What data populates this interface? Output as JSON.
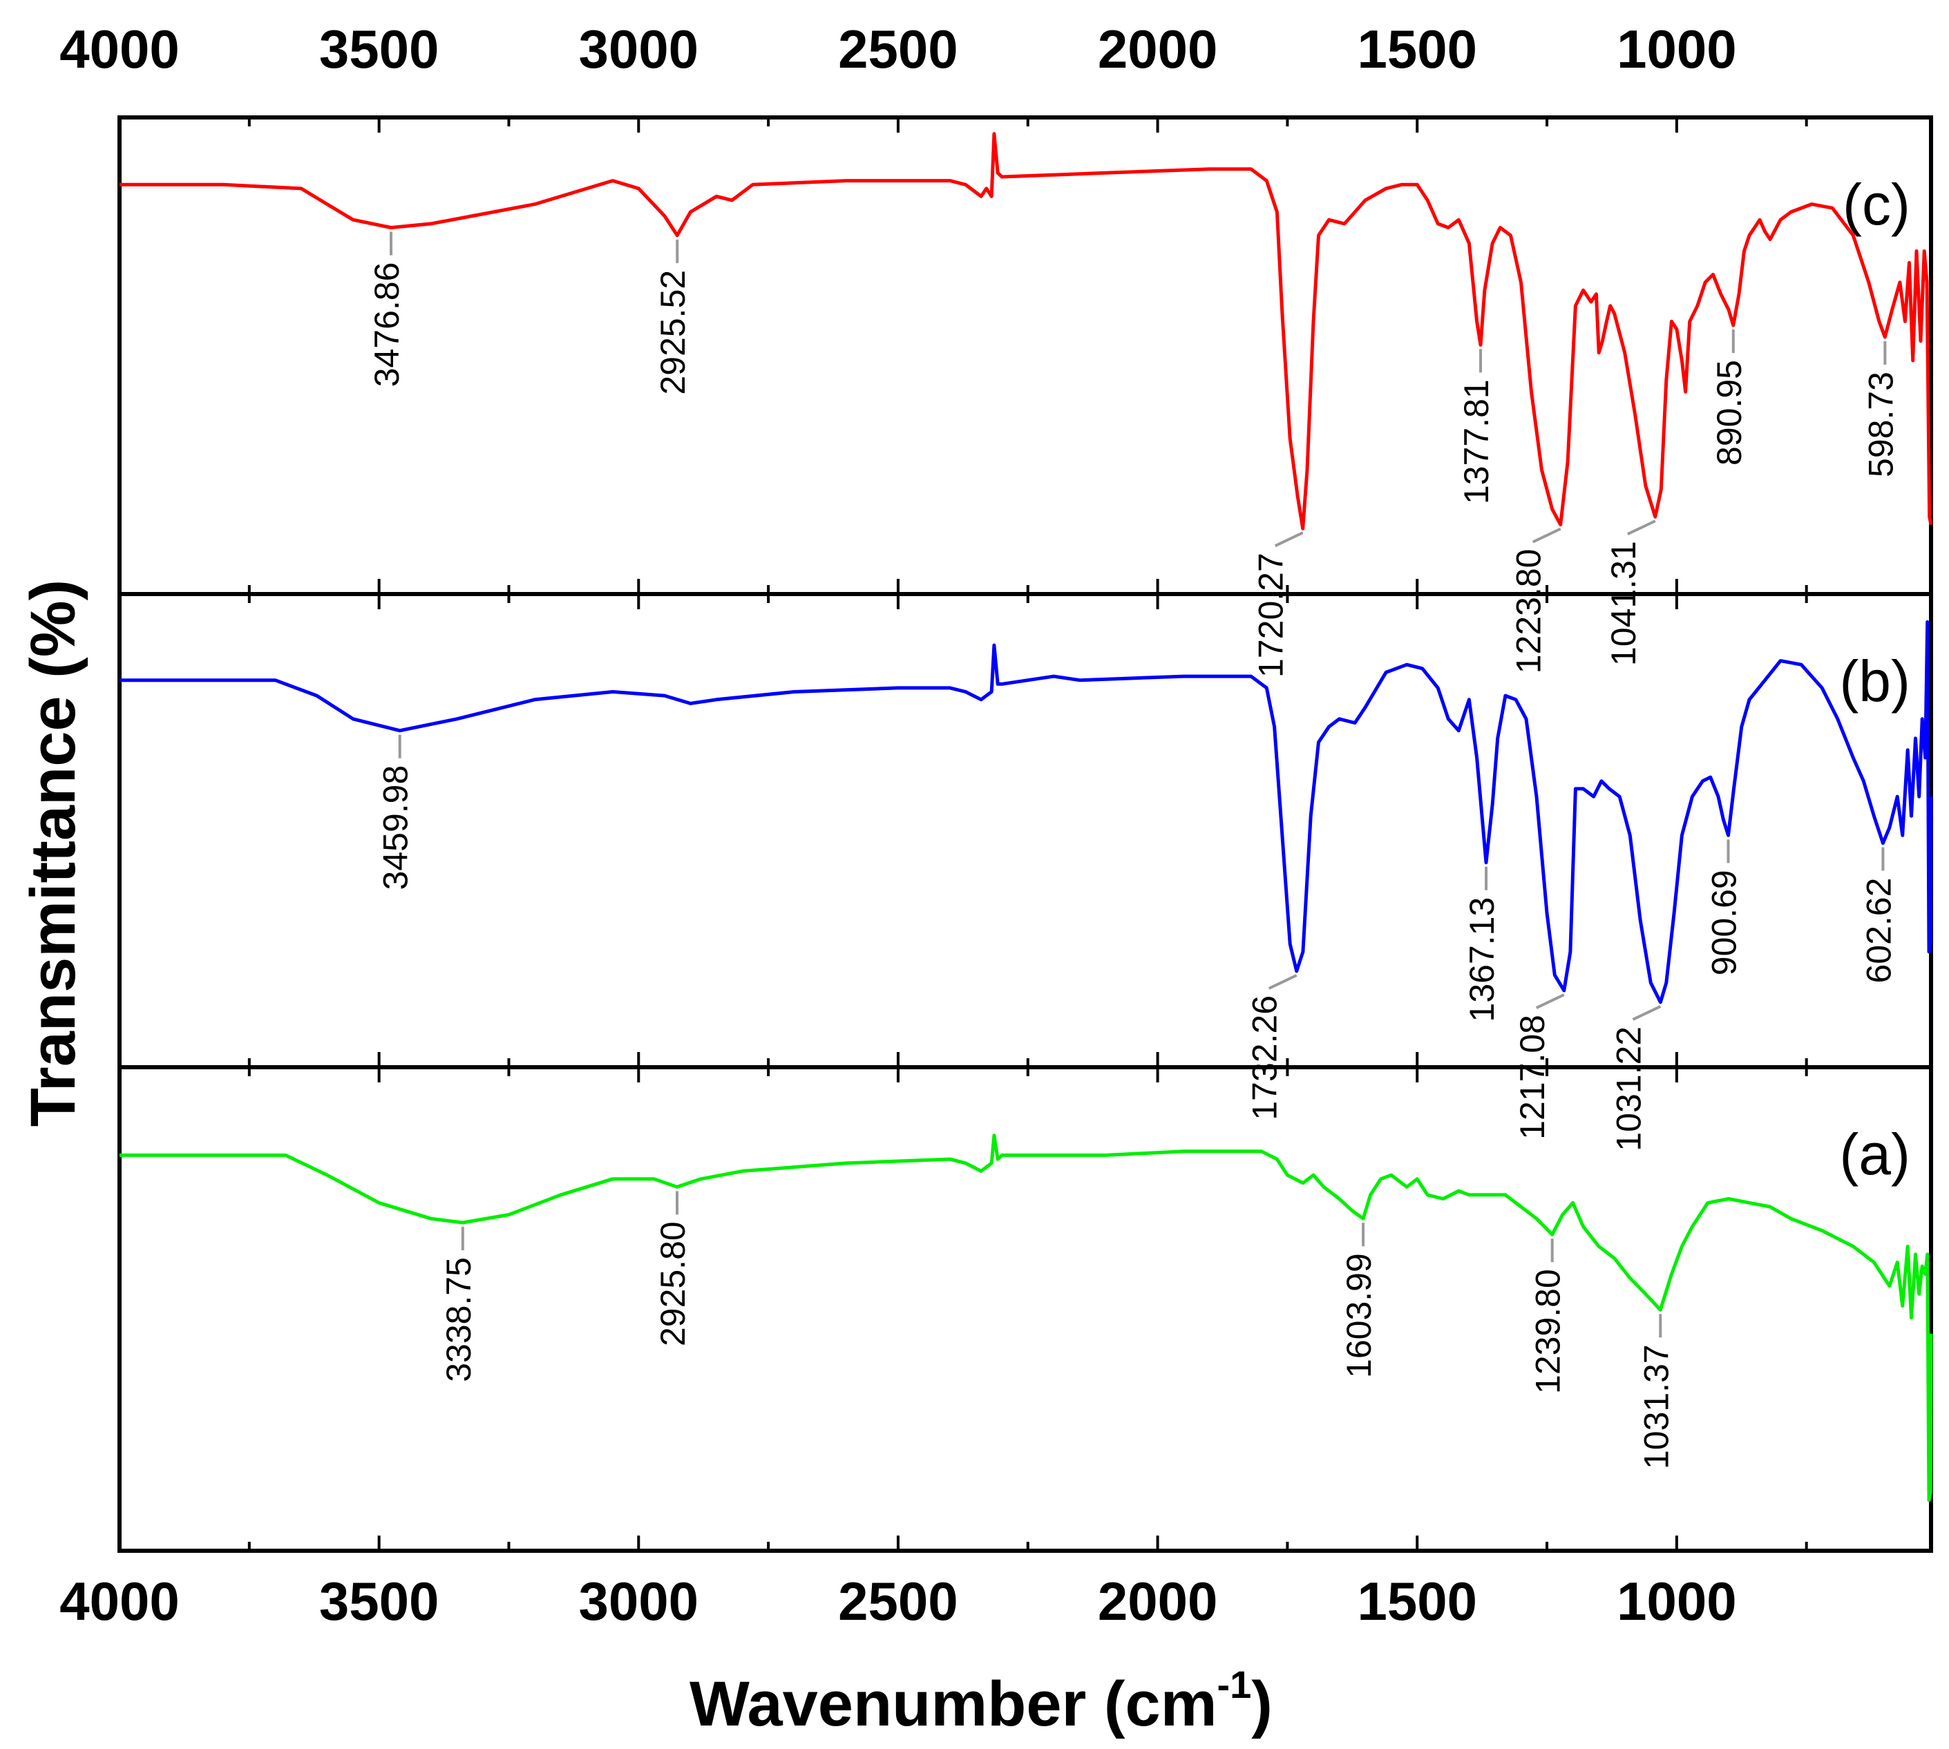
{
  "chart_data": {
    "type": "line",
    "title": "",
    "xlabel": "Wavenumber (cm",
    "xlabel_superscript": "-1",
    "xlabel_suffix": ")",
    "ylabel": "Transmittance (%)",
    "xlim": [
      4000,
      510
    ],
    "x_ticks": [
      4000,
      3500,
      3000,
      2500,
      2000,
      1500,
      1000
    ],
    "grid": false,
    "panels": [
      {
        "label": "(c)",
        "color": "#ff0000",
        "peaks": [
          {
            "x": 3476.86,
            "label": "3476.86"
          },
          {
            "x": 2925.52,
            "label": "2925.52"
          },
          {
            "x": 1720.27,
            "label": "1720.27"
          },
          {
            "x": 1377.81,
            "label": "1377.81"
          },
          {
            "x": 1223.8,
            "label": "1223.80"
          },
          {
            "x": 1041.31,
            "label": "1041.31"
          },
          {
            "x": 890.95,
            "label": "890.95"
          },
          {
            "x": 598.73,
            "label": "598.73"
          }
        ],
        "series": [
          [
            4000,
            0.05
          ],
          [
            3800,
            0.05
          ],
          [
            3650,
            0.06
          ],
          [
            3600,
            0.1
          ],
          [
            3550,
            0.14
          ],
          [
            3476.86,
            0.16
          ],
          [
            3400,
            0.15
          ],
          [
            3200,
            0.1
          ],
          [
            3050,
            0.04
          ],
          [
            3000,
            0.06
          ],
          [
            2950,
            0.13
          ],
          [
            2925.52,
            0.18
          ],
          [
            2900,
            0.12
          ],
          [
            2850,
            0.08
          ],
          [
            2820,
            0.09
          ],
          [
            2780,
            0.05
          ],
          [
            2600,
            0.04
          ],
          [
            2400,
            0.04
          ],
          [
            2370,
            0.05
          ],
          [
            2340,
            0.08
          ],
          [
            2330,
            0.06
          ],
          [
            2320,
            0.08
          ],
          [
            2315,
            -0.08
          ],
          [
            2308,
            0.02
          ],
          [
            2300,
            0.03
          ],
          [
            2100,
            0.02
          ],
          [
            1900,
            0.01
          ],
          [
            1820,
            0.01
          ],
          [
            1790,
            0.04
          ],
          [
            1770,
            0.12
          ],
          [
            1760,
            0.38
          ],
          [
            1745,
            0.7
          ],
          [
            1730,
            0.85
          ],
          [
            1720.27,
            0.93
          ],
          [
            1712,
            0.78
          ],
          [
            1700,
            0.4
          ],
          [
            1690,
            0.18
          ],
          [
            1670,
            0.14
          ],
          [
            1640,
            0.15
          ],
          [
            1620,
            0.12
          ],
          [
            1600,
            0.09
          ],
          [
            1560,
            0.06
          ],
          [
            1530,
            0.05
          ],
          [
            1500,
            0.05
          ],
          [
            1480,
            0.09
          ],
          [
            1460,
            0.15
          ],
          [
            1440,
            0.16
          ],
          [
            1420,
            0.14
          ],
          [
            1400,
            0.2
          ],
          [
            1385,
            0.4
          ],
          [
            1377.81,
            0.46
          ],
          [
            1370,
            0.32
          ],
          [
            1355,
            0.2
          ],
          [
            1340,
            0.16
          ],
          [
            1320,
            0.18
          ],
          [
            1300,
            0.3
          ],
          [
            1280,
            0.58
          ],
          [
            1260,
            0.78
          ],
          [
            1240,
            0.88
          ],
          [
            1223.8,
            0.92
          ],
          [
            1210,
            0.76
          ],
          [
            1195,
            0.36
          ],
          [
            1180,
            0.32
          ],
          [
            1165,
            0.35
          ],
          [
            1155,
            0.33
          ],
          [
            1150,
            0.48
          ],
          [
            1143,
            0.45
          ],
          [
            1135,
            0.4
          ],
          [
            1128,
            0.36
          ],
          [
            1120,
            0.38
          ],
          [
            1100,
            0.48
          ],
          [
            1080,
            0.64
          ],
          [
            1060,
            0.82
          ],
          [
            1041.31,
            0.9
          ],
          [
            1030,
            0.83
          ],
          [
            1020,
            0.55
          ],
          [
            1010,
            0.4
          ],
          [
            1000,
            0.42
          ],
          [
            990,
            0.5
          ],
          [
            983,
            0.58
          ],
          [
            975,
            0.4
          ],
          [
            960,
            0.36
          ],
          [
            945,
            0.3
          ],
          [
            930,
            0.28
          ],
          [
            915,
            0.33
          ],
          [
            900,
            0.37
          ],
          [
            890.95,
            0.41
          ],
          [
            880,
            0.33
          ],
          [
            870,
            0.22
          ],
          [
            860,
            0.18
          ],
          [
            840,
            0.14
          ],
          [
            830,
            0.17
          ],
          [
            820,
            0.19
          ],
          [
            800,
            0.14
          ],
          [
            780,
            0.12
          ],
          [
            740,
            0.1
          ],
          [
            700,
            0.11
          ],
          [
            660,
            0.18
          ],
          [
            630,
            0.3
          ],
          [
            610,
            0.4
          ],
          [
            598.73,
            0.44
          ],
          [
            585,
            0.37
          ],
          [
            570,
            0.3
          ],
          [
            560,
            0.4
          ],
          [
            552,
            0.25
          ],
          [
            545,
            0.5
          ],
          [
            538,
            0.22
          ],
          [
            530,
            0.45
          ],
          [
            523,
            0.22
          ],
          [
            518,
            0.3
          ],
          [
            513,
            0.9
          ],
          [
            510,
            0.92
          ]
        ]
      },
      {
        "label": "(b)",
        "color": "#0000ff",
        "peaks": [
          {
            "x": 3459.98,
            "label": "3459.98"
          },
          {
            "x": 1732.26,
            "label": "1732.26"
          },
          {
            "x": 1367.13,
            "label": "1367.13"
          },
          {
            "x": 1217.08,
            "label": "1217.08"
          },
          {
            "x": 1031.22,
            "label": "1031.22"
          },
          {
            "x": 900.69,
            "label": "900.69"
          },
          {
            "x": 602.62,
            "label": "602.62"
          }
        ],
        "series": [
          [
            4000,
            0.1
          ],
          [
            3800,
            0.1
          ],
          [
            3700,
            0.1
          ],
          [
            3620,
            0.14
          ],
          [
            3550,
            0.2
          ],
          [
            3459.98,
            0.23
          ],
          [
            3350,
            0.2
          ],
          [
            3200,
            0.15
          ],
          [
            3050,
            0.13
          ],
          [
            2950,
            0.14
          ],
          [
            2900,
            0.16
          ],
          [
            2850,
            0.15
          ],
          [
            2700,
            0.13
          ],
          [
            2500,
            0.12
          ],
          [
            2400,
            0.12
          ],
          [
            2370,
            0.13
          ],
          [
            2340,
            0.15
          ],
          [
            2320,
            0.13
          ],
          [
            2315,
            0.01
          ],
          [
            2308,
            0.11
          ],
          [
            2300,
            0.11
          ],
          [
            2250,
            0.1
          ],
          [
            2200,
            0.09
          ],
          [
            2150,
            0.1
          ],
          [
            1950,
            0.09
          ],
          [
            1820,
            0.09
          ],
          [
            1790,
            0.12
          ],
          [
            1775,
            0.22
          ],
          [
            1760,
            0.5
          ],
          [
            1745,
            0.78
          ],
          [
            1732.26,
            0.85
          ],
          [
            1720,
            0.8
          ],
          [
            1705,
            0.45
          ],
          [
            1690,
            0.26
          ],
          [
            1670,
            0.22
          ],
          [
            1650,
            0.2
          ],
          [
            1620,
            0.21
          ],
          [
            1600,
            0.17
          ],
          [
            1560,
            0.08
          ],
          [
            1520,
            0.06
          ],
          [
            1490,
            0.07
          ],
          [
            1460,
            0.12
          ],
          [
            1440,
            0.2
          ],
          [
            1420,
            0.23
          ],
          [
            1400,
            0.15
          ],
          [
            1385,
            0.3
          ],
          [
            1367.13,
            0.57
          ],
          [
            1355,
            0.42
          ],
          [
            1345,
            0.25
          ],
          [
            1330,
            0.14
          ],
          [
            1310,
            0.15
          ],
          [
            1290,
            0.2
          ],
          [
            1270,
            0.4
          ],
          [
            1250,
            0.7
          ],
          [
            1235,
            0.86
          ],
          [
            1217.08,
            0.9
          ],
          [
            1205,
            0.8
          ],
          [
            1195,
            0.38
          ],
          [
            1180,
            0.38
          ],
          [
            1160,
            0.4
          ],
          [
            1145,
            0.36
          ],
          [
            1130,
            0.38
          ],
          [
            1110,
            0.4
          ],
          [
            1090,
            0.5
          ],
          [
            1070,
            0.72
          ],
          [
            1050,
            0.88
          ],
          [
            1031.22,
            0.93
          ],
          [
            1020,
            0.88
          ],
          [
            1005,
            0.7
          ],
          [
            990,
            0.5
          ],
          [
            970,
            0.4
          ],
          [
            950,
            0.36
          ],
          [
            935,
            0.35
          ],
          [
            920,
            0.4
          ],
          [
            910,
            0.46
          ],
          [
            900.69,
            0.5
          ],
          [
            890,
            0.38
          ],
          [
            875,
            0.22
          ],
          [
            860,
            0.15
          ],
          [
            830,
            0.1
          ],
          [
            800,
            0.05
          ],
          [
            760,
            0.06
          ],
          [
            720,
            0.12
          ],
          [
            690,
            0.2
          ],
          [
            660,
            0.3
          ],
          [
            640,
            0.36
          ],
          [
            620,
            0.45
          ],
          [
            602.62,
            0.52
          ],
          [
            590,
            0.48
          ],
          [
            575,
            0.4
          ],
          [
            565,
            0.5
          ],
          [
            555,
            0.28
          ],
          [
            548,
            0.45
          ],
          [
            540,
            0.25
          ],
          [
            533,
            0.4
          ],
          [
            527,
            0.2
          ],
          [
            521,
            0.3
          ],
          [
            517,
            -0.05
          ],
          [
            514,
            0.8
          ],
          [
            511,
            0.78
          ],
          [
            510,
            0.4
          ]
        ]
      },
      {
        "label": "(a)",
        "color": "#00ee00",
        "peaks": [
          {
            "x": 3338.75,
            "label": "3338.75"
          },
          {
            "x": 2925.8,
            "label": "2925.80"
          },
          {
            "x": 1603.99,
            "label": "1603.99"
          },
          {
            "x": 1239.8,
            "label": "1239.80"
          },
          {
            "x": 1031.37,
            "label": "1031.37"
          }
        ],
        "series": [
          [
            4000,
            0.1
          ],
          [
            3800,
            0.1
          ],
          [
            3680,
            0.1
          ],
          [
            3600,
            0.15
          ],
          [
            3500,
            0.22
          ],
          [
            3400,
            0.26
          ],
          [
            3338.75,
            0.27
          ],
          [
            3250,
            0.25
          ],
          [
            3150,
            0.2
          ],
          [
            3050,
            0.16
          ],
          [
            2970,
            0.16
          ],
          [
            2925.8,
            0.18
          ],
          [
            2880,
            0.16
          ],
          [
            2800,
            0.14
          ],
          [
            2600,
            0.12
          ],
          [
            2400,
            0.11
          ],
          [
            2370,
            0.12
          ],
          [
            2340,
            0.14
          ],
          [
            2320,
            0.12
          ],
          [
            2315,
            0.05
          ],
          [
            2308,
            0.11
          ],
          [
            2300,
            0.1
          ],
          [
            2100,
            0.1
          ],
          [
            1950,
            0.09
          ],
          [
            1800,
            0.09
          ],
          [
            1770,
            0.11
          ],
          [
            1750,
            0.15
          ],
          [
            1720,
            0.17
          ],
          [
            1700,
            0.15
          ],
          [
            1680,
            0.18
          ],
          [
            1650,
            0.21
          ],
          [
            1625,
            0.24
          ],
          [
            1603.99,
            0.26
          ],
          [
            1590,
            0.2
          ],
          [
            1570,
            0.16
          ],
          [
            1550,
            0.15
          ],
          [
            1520,
            0.18
          ],
          [
            1500,
            0.16
          ],
          [
            1480,
            0.2
          ],
          [
            1450,
            0.21
          ],
          [
            1420,
            0.19
          ],
          [
            1400,
            0.2
          ],
          [
            1370,
            0.2
          ],
          [
            1330,
            0.2
          ],
          [
            1300,
            0.23
          ],
          [
            1270,
            0.26
          ],
          [
            1239.8,
            0.3
          ],
          [
            1220,
            0.25
          ],
          [
            1200,
            0.22
          ],
          [
            1180,
            0.28
          ],
          [
            1150,
            0.33
          ],
          [
            1120,
            0.36
          ],
          [
            1090,
            0.41
          ],
          [
            1060,
            0.45
          ],
          [
            1031.37,
            0.49
          ],
          [
            1010,
            0.4
          ],
          [
            990,
            0.33
          ],
          [
            970,
            0.28
          ],
          [
            940,
            0.22
          ],
          [
            900,
            0.21
          ],
          [
            860,
            0.22
          ],
          [
            820,
            0.23
          ],
          [
            780,
            0.26
          ],
          [
            720,
            0.29
          ],
          [
            660,
            0.33
          ],
          [
            620,
            0.37
          ],
          [
            590,
            0.43
          ],
          [
            575,
            0.37
          ],
          [
            565,
            0.48
          ],
          [
            555,
            0.33
          ],
          [
            548,
            0.51
          ],
          [
            540,
            0.35
          ],
          [
            533,
            0.45
          ],
          [
            527,
            0.38
          ],
          [
            521,
            0.4
          ],
          [
            517,
            0.35
          ],
          [
            514,
            0.97
          ],
          [
            511,
            0.95
          ],
          [
            510,
            0.55
          ]
        ]
      }
    ]
  }
}
